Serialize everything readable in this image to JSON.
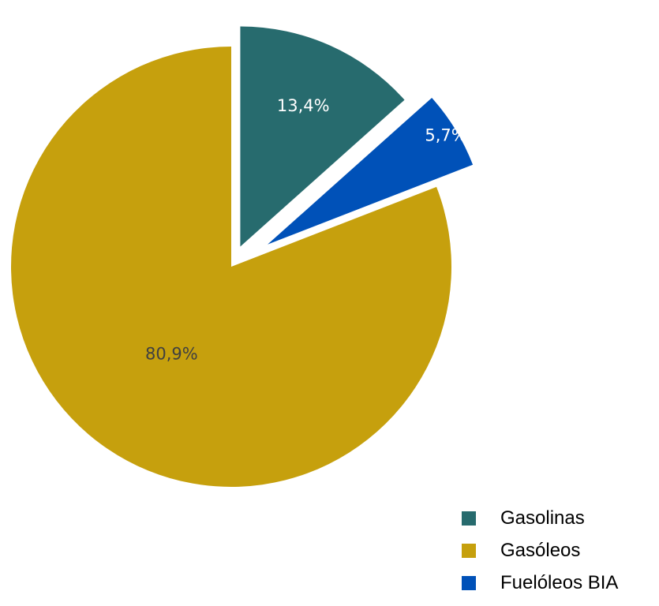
{
  "chart_data": {
    "type": "pie",
    "title": "",
    "categories": [
      "Gasolinas",
      "Gasóleos",
      "Fuelóleos BIA"
    ],
    "values": [
      13.4,
      80.9,
      5.7
    ],
    "labels": [
      "13,4%",
      "80,9%",
      "5,7%"
    ],
    "unit": "%",
    "exploded": true,
    "legend_position": "bottom-right",
    "colors": [
      "#276b6e",
      "#c6a00d",
      "#0051b8"
    ],
    "label_colors": [
      "#ffffff",
      "#404040",
      "#ffffff"
    ]
  }
}
